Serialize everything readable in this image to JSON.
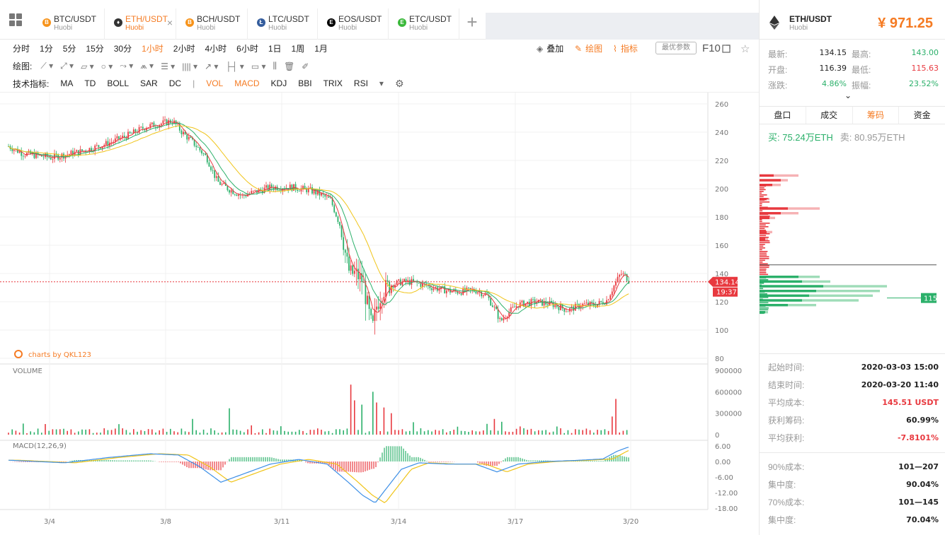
{
  "tabs": [
    {
      "symbol": "BTC/USDT",
      "exchange": "Huobi",
      "icon": "bitcoin-icon",
      "color": "#f7931a",
      "glyph": "B",
      "active": false
    },
    {
      "symbol": "ETH/USDT",
      "exchange": "Huobi",
      "icon": "ethereum-icon",
      "color": "#333333",
      "glyph": "♦",
      "active": true
    },
    {
      "symbol": "BCH/USDT",
      "exchange": "Huobi",
      "icon": "bitcoin-cash-icon",
      "color": "#f7931a",
      "glyph": "B",
      "active": false
    },
    {
      "symbol": "LTC/USDT",
      "exchange": "Huobi",
      "icon": "litecoin-icon",
      "color": "#345d9d",
      "glyph": "Ł",
      "active": false
    },
    {
      "symbol": "EOS/USDT",
      "exchange": "Huobi",
      "icon": "eos-icon",
      "color": "#000000",
      "glyph": "E",
      "active": false
    },
    {
      "symbol": "ETC/USDT",
      "exchange": "Huobi",
      "icon": "ethereum-classic-icon",
      "color": "#3ab83a",
      "glyph": "E",
      "active": false
    }
  ],
  "timeframes": [
    "分时",
    "1分",
    "5分",
    "15分",
    "30分",
    "1小时",
    "2小时",
    "4小时",
    "6小时",
    "1日",
    "1周",
    "1月"
  ],
  "active_timeframe": "1小时",
  "toolbar_right": {
    "overlay": "叠加",
    "draw": "绘图",
    "indicator": "指标",
    "best_params": "最优参数",
    "f10": "F10"
  },
  "draw_label": "绘图:",
  "indicator_label": "技术指标:",
  "indicators_main": [
    "MA",
    "TD",
    "BOLL",
    "SAR",
    "DC"
  ],
  "indicators_sub": [
    "VOL",
    "MACD",
    "KDJ",
    "BBI",
    "TRIX",
    "RSI"
  ],
  "indicators_active": [
    "VOL",
    "MACD"
  ],
  "chart_data": {
    "type": "candlestick",
    "price_axis": {
      "ticks": [
        "260",
        "240",
        "220",
        "200",
        "180",
        "160",
        "140",
        "120",
        "100",
        "80"
      ],
      "range": [
        80,
        260
      ]
    },
    "volume_axis": {
      "label": "VOLUME",
      "ticks": [
        "900000",
        "600000",
        "300000",
        "0"
      ],
      "range": [
        0,
        900000
      ]
    },
    "macd_axis": {
      "label": "MACD(12,26,9)",
      "ticks": [
        "6.00",
        "0.00",
        "-6.00",
        "-12.00",
        "-18.00"
      ],
      "range": [
        -18,
        6
      ]
    },
    "x_ticks": [
      "3/4",
      "3/8",
      "3/11",
      "3/14",
      "3/17",
      "3/20"
    ],
    "current_price": "134.14",
    "countdown": "19:37",
    "watermark": "charts by QKL123",
    "price_anchors": [
      [
        0,
        230
      ],
      [
        20,
        225
      ],
      [
        60,
        222
      ],
      [
        100,
        226
      ],
      [
        140,
        232
      ],
      [
        170,
        238
      ],
      [
        195,
        244
      ],
      [
        215,
        246
      ],
      [
        232,
        248
      ],
      [
        245,
        240
      ],
      [
        262,
        232
      ],
      [
        280,
        222
      ],
      [
        295,
        205
      ],
      [
        310,
        200
      ],
      [
        330,
        195
      ],
      [
        350,
        198
      ],
      [
        370,
        201
      ],
      [
        400,
        201
      ],
      [
        425,
        199
      ],
      [
        440,
        196
      ],
      [
        455,
        192
      ],
      [
        470,
        172
      ],
      [
        478,
        148
      ],
      [
        482,
        140
      ],
      [
        490,
        140
      ],
      [
        500,
        135
      ],
      [
        508,
        115
      ],
      [
        514,
        100
      ],
      [
        520,
        117
      ],
      [
        528,
        128
      ],
      [
        540,
        132
      ],
      [
        555,
        134
      ],
      [
        570,
        134
      ],
      [
        600,
        130
      ],
      [
        630,
        127
      ],
      [
        660,
        128
      ],
      [
        675,
        125
      ],
      [
        688,
        114
      ],
      [
        695,
        106
      ],
      [
        705,
        112
      ],
      [
        720,
        118
      ],
      [
        745,
        120
      ],
      [
        770,
        118
      ],
      [
        790,
        114
      ],
      [
        810,
        118
      ],
      [
        830,
        118
      ],
      [
        845,
        121
      ],
      [
        855,
        131
      ],
      [
        865,
        140
      ],
      [
        872,
        138
      ],
      [
        878,
        134
      ]
    ],
    "volume_spikes": [
      [
        482,
        700000
      ],
      [
        490,
        480000
      ],
      [
        500,
        420000
      ],
      [
        515,
        600000
      ],
      [
        520,
        450000
      ],
      [
        528,
        380000
      ],
      [
        542,
        300000
      ],
      [
        860,
        500000
      ],
      [
        855,
        250000
      ],
      [
        688,
        220000
      ],
      [
        695,
        180000
      ],
      [
        262,
        220000
      ],
      [
        310,
        250000
      ]
    ],
    "macd_anchors": [
      [
        0,
        0.5
      ],
      [
        80,
        -0.5
      ],
      [
        140,
        1.5
      ],
      [
        200,
        3
      ],
      [
        240,
        2.5
      ],
      [
        270,
        -2
      ],
      [
        300,
        -8
      ],
      [
        330,
        -5
      ],
      [
        370,
        -1
      ],
      [
        410,
        0.8
      ],
      [
        450,
        -1
      ],
      [
        480,
        -8
      ],
      [
        500,
        -13
      ],
      [
        518,
        -16
      ],
      [
        535,
        -10
      ],
      [
        555,
        -3
      ],
      [
        580,
        -0.5
      ],
      [
        620,
        -1
      ],
      [
        660,
        -1
      ],
      [
        690,
        -4
      ],
      [
        720,
        -1
      ],
      [
        760,
        0
      ],
      [
        800,
        0.4
      ],
      [
        840,
        1
      ],
      [
        860,
        4
      ],
      [
        875,
        5.5
      ]
    ],
    "chips_bins": [
      {
        "price": 220,
        "a": 20,
        "b": 55
      },
      {
        "price": 216,
        "a": 30,
        "b": 40
      },
      {
        "price": 212,
        "a": 18,
        "b": 30
      },
      {
        "price": 200,
        "a": 10,
        "b": 14
      },
      {
        "price": 192,
        "a": 40,
        "b": 85
      },
      {
        "price": 188,
        "a": 30,
        "b": 55
      },
      {
        "price": 184,
        "a": 14,
        "b": 22
      },
      {
        "price": 172,
        "a": 10,
        "b": 18
      },
      {
        "price": 166,
        "a": 8,
        "b": 12
      },
      {
        "price": 134,
        "a": 55,
        "b": 85
      },
      {
        "price": 130,
        "a": 60,
        "b": 100
      },
      {
        "price": 126,
        "a": 90,
        "b": 180
      },
      {
        "price": 122,
        "a": 80,
        "b": 170
      },
      {
        "price": 118,
        "a": 70,
        "b": 160
      },
      {
        "price": 114,
        "a": 60,
        "b": 140
      },
      {
        "price": 110,
        "a": 40,
        "b": 80
      },
      {
        "price": 104,
        "a": 8,
        "b": 12
      }
    ],
    "chips_marker": "115"
  },
  "right_panel": {
    "pair": "ETH/USDT",
    "exchange": "Huobi",
    "price": "¥ 971.25",
    "stats": [
      {
        "k": "最新:",
        "v": "134.15",
        "k2": "最高:",
        "v2": "143.00",
        "c2": "#2bb06a"
      },
      {
        "k": "开盘:",
        "v": "116.39",
        "k2": "最低:",
        "v2": "115.63",
        "c2": "#e8393f"
      },
      {
        "k": "涨跌:",
        "v": "4.86%",
        "c": "#2bb06a",
        "k2": "振幅:",
        "v2": "23.52%",
        "c2": "#2bb06a"
      }
    ],
    "tabs": [
      "盘口",
      "成交",
      "筹码",
      "资金"
    ],
    "active_tab": "筹码",
    "buy": "买: 75.24万ETH",
    "sell": "卖: 80.95万ETH",
    "info": [
      {
        "k": "起始时间:",
        "v": "2020-03-03 15:00"
      },
      {
        "k": "结束时间:",
        "v": "2020-03-20 11:40"
      },
      {
        "k": "平均成本:",
        "v": "145.51 USDT",
        "red": true
      },
      {
        "k": "获利筹码:",
        "v": "60.99%"
      },
      {
        "k": "平均获利:",
        "v": "-7.8101%",
        "red": true
      },
      {
        "k": "90%成本:",
        "v": "101—207"
      },
      {
        "k": "集中度:",
        "v": "90.04%"
      },
      {
        "k": "70%成本:",
        "v": "101—145"
      },
      {
        "k": "集中度:",
        "v": "70.04%"
      }
    ]
  }
}
